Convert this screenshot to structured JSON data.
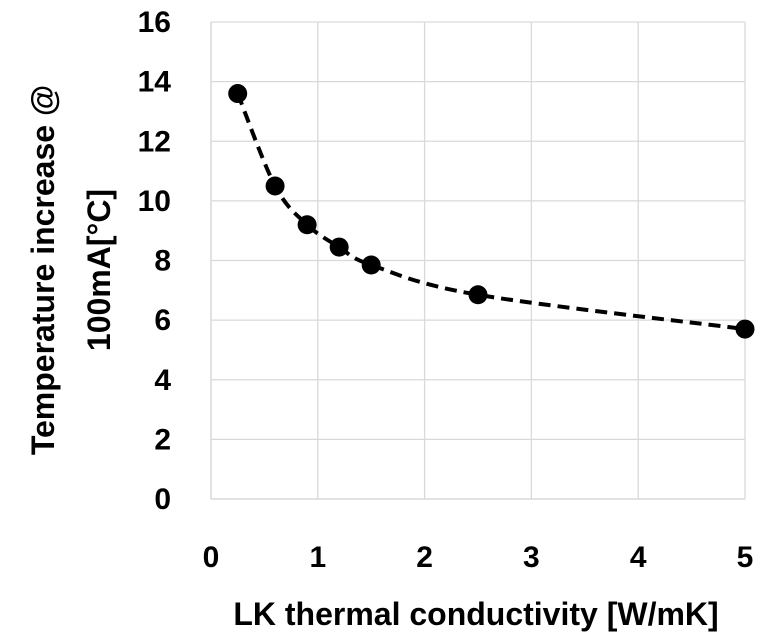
{
  "chart_data": {
    "type": "scatter",
    "xlabel": "LK thermal conductivity [W/mK]",
    "ylabel_lines": [
      "Temperature increase @",
      "100mA[°C]"
    ],
    "xlim": [
      0,
      5
    ],
    "ylim": [
      0,
      16
    ],
    "x_ticks": [
      "0",
      "1",
      "2",
      "3",
      "4",
      "5"
    ],
    "y_ticks": [
      "0",
      "2",
      "4",
      "6",
      "8",
      "10",
      "12",
      "14",
      "16"
    ],
    "grid": true,
    "line_style": "dashed",
    "marker_color": "#000000",
    "series": [
      {
        "x": [
          0.25,
          0.6,
          0.9,
          1.2,
          1.5,
          2.5,
          5.0
        ],
        "y": [
          13.6,
          10.5,
          9.2,
          8.45,
          7.85,
          6.85,
          5.7
        ]
      }
    ]
  }
}
